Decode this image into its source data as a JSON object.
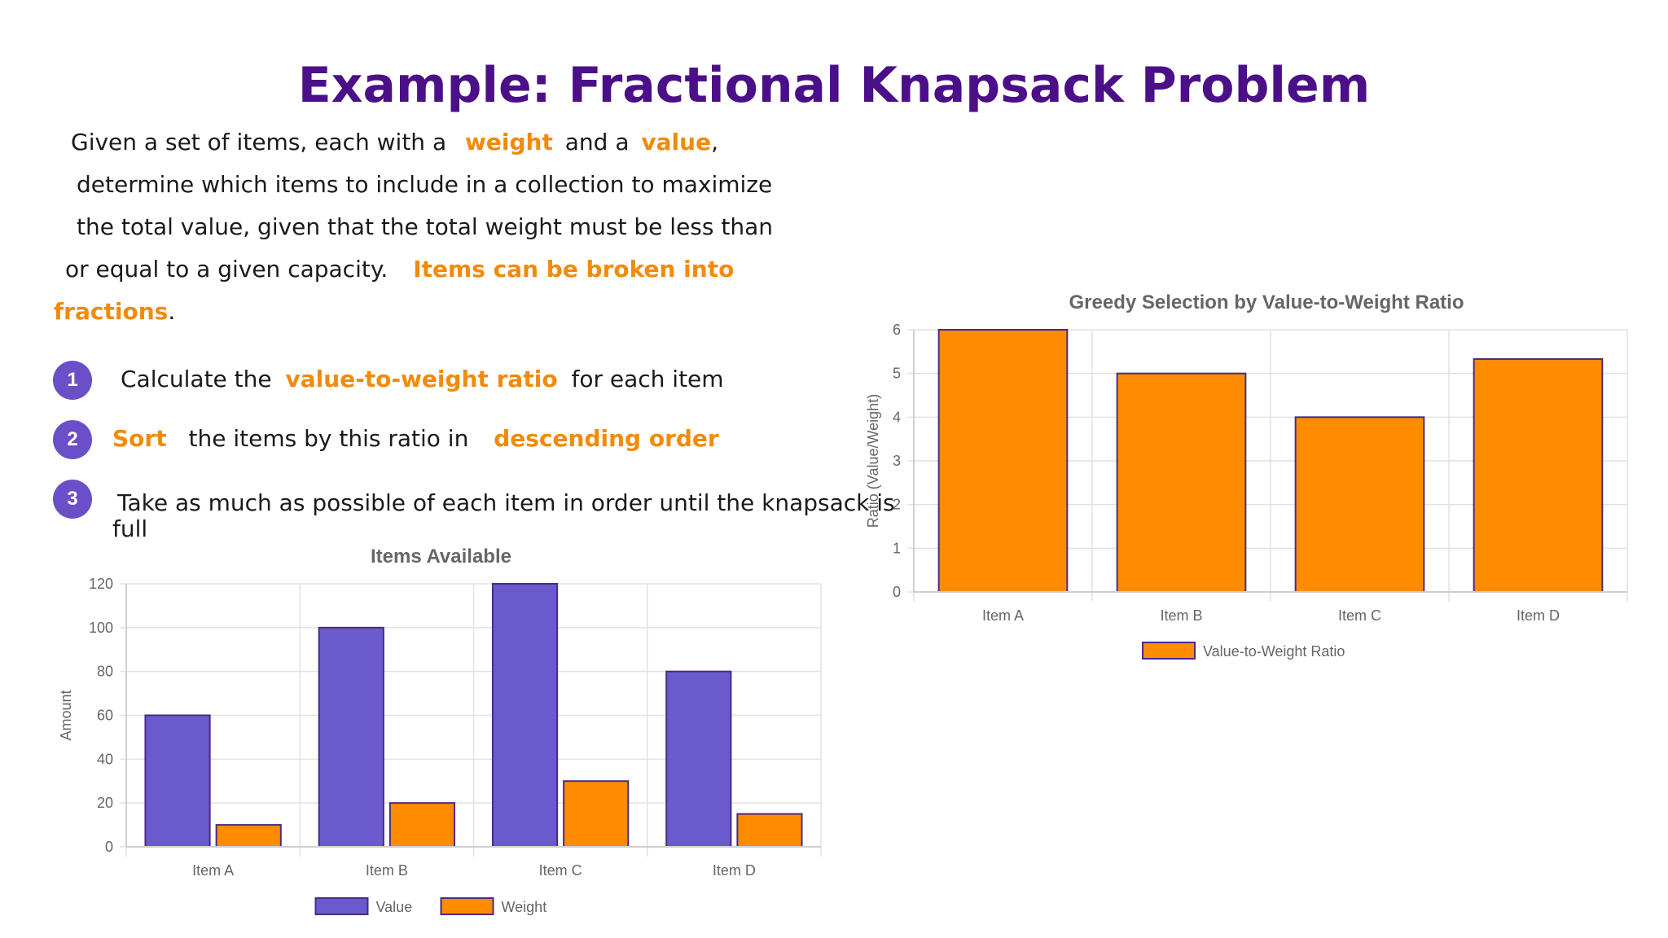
{
  "title": "Example: Fractional Knapsack Problem",
  "intro": {
    "l1_a": "Given a set of items, each with a",
    "l1_weight": "weight",
    "l1_b": "and a",
    "l1_value": "value",
    "l1_c": ",",
    "l2": "determine which items to include in a collection to maximize",
    "l3": "the total value, given that the total weight must be less than",
    "l4_a": "or equal to a given capacity.",
    "l4_hl": "Items can be broken into",
    "l5_hl": "fractions",
    "l5_b": "."
  },
  "steps": [
    {
      "num": "1",
      "a": "Calculate the",
      "hl": "value-to-weight ratio",
      "b": "for each item"
    },
    {
      "num": "2",
      "hl": "Sort",
      "a": "the items by this ratio in",
      "hl2": "descending order"
    },
    {
      "num": "3",
      "a": "Take as much as possible of each item in order until the knapsack is",
      "b": "full"
    }
  ],
  "colors": {
    "purple": "#6a5acd",
    "purple_edge": "#4b2a86",
    "orange": "#ff8c00",
    "orange_edge": "#4b2a86",
    "title": "#4b0f88",
    "highlight": "#f28a0a",
    "axis_text": "#666666",
    "grid": "#e2e2e2"
  },
  "chart_data": [
    {
      "type": "bar",
      "title": "Items Available",
      "ylabel": "Amount",
      "xlabel": "",
      "categories": [
        "Item A",
        "Item B",
        "Item C",
        "Item D"
      ],
      "series": [
        {
          "name": "Value",
          "values": [
            60,
            100,
            120,
            80
          ],
          "color": "#6a5acd"
        },
        {
          "name": "Weight",
          "values": [
            10,
            20,
            30,
            15
          ],
          "color": "#ff8c00"
        }
      ],
      "ylim": [
        0,
        120
      ],
      "yticks": [
        0,
        20,
        40,
        60,
        80,
        100,
        120
      ],
      "grid": true,
      "legend": "bottom"
    },
    {
      "type": "bar",
      "title": "Greedy Selection by Value-to-Weight Ratio",
      "ylabel": "Ratio (Value/Weight)",
      "xlabel": "",
      "categories": [
        "Item A",
        "Item B",
        "Item C",
        "Item D"
      ],
      "series": [
        {
          "name": "Value-to-Weight Ratio",
          "values": [
            6,
            5,
            4,
            5.33
          ],
          "color": "#ff8c00"
        }
      ],
      "ylim": [
        0,
        6
      ],
      "yticks": [
        0,
        1,
        2,
        3,
        4,
        5,
        6
      ],
      "grid": true,
      "legend": "bottom"
    }
  ]
}
